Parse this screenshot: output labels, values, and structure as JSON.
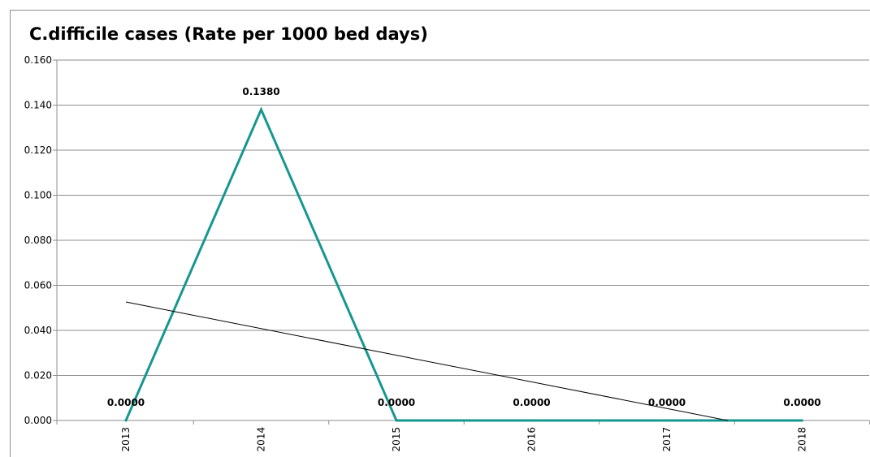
{
  "chart_data": {
    "type": "line",
    "title": "C.difficile cases (Rate per 1000 bed days)",
    "xlabel": "",
    "ylabel": "",
    "categories": [
      "2013",
      "2014",
      "2015",
      "2016",
      "2017",
      "2018"
    ],
    "series": [
      {
        "values": [
          0.0,
          0.138,
          0.0,
          0.0,
          0.0,
          0.0
        ],
        "data_labels": [
          "0.0000",
          "0.1380",
          "0.0000",
          "0.0000",
          "0.0000",
          "0.0000"
        ]
      }
    ],
    "trendline": {
      "type": "linear",
      "start": [
        2013,
        0.0526
      ],
      "end": [
        2017.45,
        0.0
      ]
    },
    "ylim": [
      0,
      0.16
    ],
    "yticks": [
      "0.000",
      "0.020",
      "0.040",
      "0.060",
      "0.080",
      "0.100",
      "0.120",
      "0.140",
      "0.160"
    ],
    "grid": true,
    "legend": "none",
    "colors": {
      "series": "#16978f",
      "trendline": "#000000",
      "gridline": "#8c8c8c"
    }
  }
}
